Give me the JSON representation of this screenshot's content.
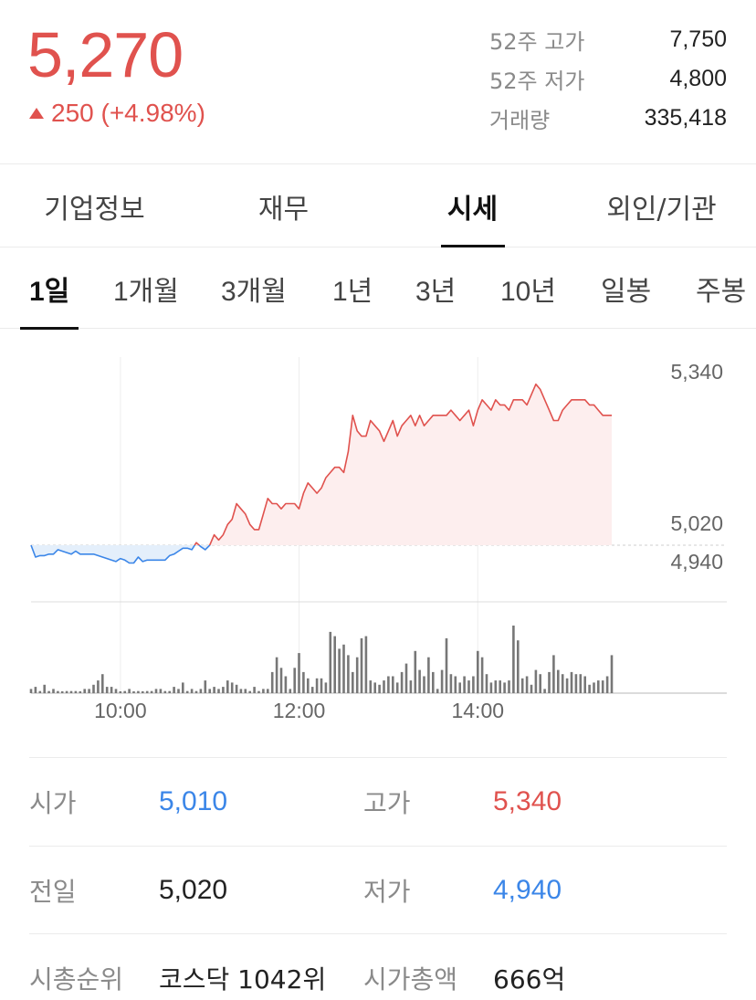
{
  "header": {
    "price": "5,270",
    "change": "250 (+4.98%)",
    "stats": [
      {
        "label": "52주 고가",
        "value": "7,750"
      },
      {
        "label": "52주 저가",
        "value": "4,800"
      },
      {
        "label": "거래량",
        "value": "335,418"
      }
    ]
  },
  "tabs": [
    {
      "label": "기업정보",
      "active": false
    },
    {
      "label": "재무",
      "active": false
    },
    {
      "label": "시세",
      "active": true
    },
    {
      "label": "외인/기관",
      "active": false
    }
  ],
  "periods": [
    {
      "label": "1일",
      "active": true
    },
    {
      "label": "1개월",
      "active": false
    },
    {
      "label": "3개월",
      "active": false
    },
    {
      "label": "1년",
      "active": false
    },
    {
      "label": "3년",
      "active": false
    },
    {
      "label": "10년",
      "active": false
    },
    {
      "label": "일봉",
      "active": false
    },
    {
      "label": "주봉",
      "active": false
    }
  ],
  "colors": {
    "up": "#e0524e",
    "down": "#3b86e8",
    "up_fill": "#fdeeee",
    "down_fill": "#e4effb",
    "volume": "#777777"
  },
  "chart_data": {
    "type": "line",
    "title": "",
    "xlabel": "",
    "ylabel": "",
    "baseline": 5020,
    "ylim": [
      4940,
      5340
    ],
    "y_labels": [
      "5,340",
      "5,020",
      "4,940"
    ],
    "x_ticks": [
      "10:00",
      "12:00",
      "14:00"
    ],
    "x_tick_times": [
      "10:00",
      "12:00",
      "14:00"
    ],
    "time_range": [
      "09:00",
      "15:30"
    ],
    "grid": true,
    "price": {
      "x": [
        "09:00",
        "09:03",
        "09:06",
        "09:09",
        "09:12",
        "09:15",
        "09:18",
        "09:21",
        "09:24",
        "09:27",
        "09:30",
        "09:33",
        "09:36",
        "09:39",
        "09:42",
        "09:45",
        "09:48",
        "09:51",
        "09:54",
        "09:57",
        "10:00",
        "10:03",
        "10:06",
        "10:09",
        "10:12",
        "10:15",
        "10:18",
        "10:21",
        "10:24",
        "10:27",
        "10:30",
        "10:33",
        "10:36",
        "10:39",
        "10:42",
        "10:45",
        "10:48",
        "10:51",
        "10:54",
        "10:57",
        "11:00",
        "11:03",
        "11:06",
        "11:09",
        "11:12",
        "11:15",
        "11:18",
        "11:21",
        "11:24",
        "11:27",
        "11:30",
        "11:33",
        "11:36",
        "11:39",
        "11:42",
        "11:45",
        "11:48",
        "11:51",
        "11:54",
        "11:57",
        "12:00",
        "12:03",
        "12:06",
        "12:09",
        "12:12",
        "12:15",
        "12:18",
        "12:21",
        "12:24",
        "12:27",
        "12:30",
        "12:33",
        "12:36",
        "12:39",
        "12:42",
        "12:45",
        "12:48",
        "12:51",
        "12:54",
        "12:57",
        "13:00",
        "13:03",
        "13:06",
        "13:09",
        "13:12",
        "13:15",
        "13:18",
        "13:21",
        "13:24",
        "13:27",
        "13:30",
        "13:33",
        "13:36",
        "13:39",
        "13:42",
        "13:45",
        "13:48",
        "13:51",
        "13:54",
        "13:57",
        "14:00",
        "14:03",
        "14:06",
        "14:09",
        "14:12",
        "14:15",
        "14:18",
        "14:21",
        "14:24",
        "14:27",
        "14:30",
        "14:33",
        "14:36",
        "14:39",
        "14:42",
        "14:45",
        "14:48",
        "14:51",
        "14:54",
        "14:57",
        "15:00",
        "15:03",
        "15:06",
        "15:09",
        "15:12",
        "15:15",
        "15:18",
        "15:21",
        "15:24",
        "15:27",
        "15:30"
      ],
      "values": [
        5020,
        4980,
        4985,
        4985,
        4990,
        4990,
        5005,
        5000,
        4995,
        4990,
        5000,
        4990,
        4990,
        4990,
        4990,
        4985,
        4980,
        4975,
        4970,
        4965,
        4975,
        4970,
        4960,
        4960,
        4980,
        4965,
        4970,
        4970,
        4970,
        4970,
        4970,
        4985,
        4990,
        5000,
        5010,
        5010,
        5005,
        5025,
        5015,
        5005,
        5020,
        5040,
        5030,
        5040,
        5060,
        5070,
        5100,
        5090,
        5080,
        5060,
        5050,
        5050,
        5080,
        5110,
        5100,
        5100,
        5090,
        5100,
        5100,
        5100,
        5090,
        5120,
        5140,
        5130,
        5120,
        5130,
        5150,
        5160,
        5170,
        5170,
        5160,
        5200,
        5270,
        5240,
        5230,
        5230,
        5260,
        5250,
        5240,
        5220,
        5240,
        5260,
        5230,
        5250,
        5260,
        5270,
        5250,
        5270,
        5250,
        5260,
        5270,
        5270,
        5270,
        5270,
        5280,
        5270,
        5260,
        5270,
        5280,
        5250,
        5280,
        5300,
        5290,
        5280,
        5300,
        5290,
        5290,
        5280,
        5300,
        5300,
        5300,
        5290,
        5310,
        5330,
        5320,
        5300,
        5280,
        5260,
        5260,
        5280,
        5290,
        5300,
        5300,
        5300,
        5300,
        5290,
        5290,
        5280,
        5270,
        5270,
        5270
      ]
    },
    "volume": {
      "x": [
        "09:00",
        "09:03",
        "09:06",
        "09:09",
        "09:12",
        "09:15",
        "09:18",
        "09:21",
        "09:24",
        "09:27",
        "09:30",
        "09:33",
        "09:36",
        "09:39",
        "09:42",
        "09:45",
        "09:48",
        "09:51",
        "09:54",
        "09:57",
        "10:00",
        "10:03",
        "10:06",
        "10:09",
        "10:12",
        "10:15",
        "10:18",
        "10:21",
        "10:24",
        "10:27",
        "10:30",
        "10:33",
        "10:36",
        "10:39",
        "10:42",
        "10:45",
        "10:48",
        "10:51",
        "10:54",
        "10:57",
        "11:00",
        "11:03",
        "11:06",
        "11:09",
        "11:12",
        "11:15",
        "11:18",
        "11:21",
        "11:24",
        "11:27",
        "11:30",
        "11:33",
        "11:36",
        "11:39",
        "11:42",
        "11:45",
        "11:48",
        "11:51",
        "11:54",
        "11:57",
        "12:00",
        "12:03",
        "12:06",
        "12:09",
        "12:12",
        "12:15",
        "12:18",
        "12:21",
        "12:24",
        "12:27",
        "12:30",
        "12:33",
        "12:36",
        "12:39",
        "12:42",
        "12:45",
        "12:48",
        "12:51",
        "12:54",
        "12:57",
        "13:00",
        "13:03",
        "13:06",
        "13:09",
        "13:12",
        "13:15",
        "13:18",
        "13:21",
        "13:24",
        "13:27",
        "13:30",
        "13:33",
        "13:36",
        "13:39",
        "13:42",
        "13:45",
        "13:48",
        "13:51",
        "13:54",
        "13:57",
        "14:00",
        "14:03",
        "14:06",
        "14:09",
        "14:12",
        "14:15",
        "14:18",
        "14:21",
        "14:24",
        "14:27",
        "14:30",
        "14:33",
        "14:36",
        "14:39",
        "14:42",
        "14:45",
        "14:48",
        "14:51",
        "14:54",
        "14:57",
        "15:00",
        "15:03",
        "15:06",
        "15:09",
        "15:12",
        "15:15",
        "15:18",
        "15:21",
        "15:24",
        "15:27",
        "15:30"
      ],
      "values": [
        2,
        3,
        1,
        4,
        1,
        2,
        1,
        0,
        1,
        1,
        1,
        0,
        2,
        2,
        4,
        6,
        9,
        3,
        3,
        2,
        0,
        1,
        2,
        0,
        1,
        0,
        1,
        1,
        2,
        2,
        1,
        1,
        3,
        2,
        5,
        1,
        2,
        1,
        2,
        6,
        2,
        3,
        2,
        3,
        6,
        5,
        4,
        2,
        2,
        1,
        3,
        1,
        2,
        2,
        10,
        17,
        12,
        8,
        2,
        12,
        19,
        10,
        7,
        3,
        7,
        7,
        5,
        29,
        27,
        21,
        23,
        18,
        10,
        17,
        26,
        27,
        6,
        5,
        4,
        6,
        8,
        8,
        5,
        10,
        14,
        6,
        20,
        11,
        8,
        17,
        10,
        2,
        11,
        26,
        9,
        8,
        5,
        8,
        6,
        8,
        20,
        17,
        9,
        5,
        6,
        6,
        5,
        6,
        32,
        25,
        7,
        8,
        4,
        11,
        9,
        2,
        10,
        18,
        11,
        9,
        7,
        10,
        9,
        9,
        8,
        4,
        5,
        6,
        6,
        8,
        18
      ]
    }
  },
  "info": [
    {
      "label": "시가",
      "value": "5,010",
      "color": "blue",
      "label2": "고가",
      "value2": "5,340",
      "color2": "red"
    },
    {
      "label": "전일",
      "value": "5,020",
      "color": "",
      "label2": "저가",
      "value2": "4,940",
      "color2": "blue"
    },
    {
      "label": "시총순위",
      "value": "코스닥 1042위",
      "color": "",
      "label2": "시가총액",
      "value2": "666억",
      "color2": ""
    }
  ]
}
